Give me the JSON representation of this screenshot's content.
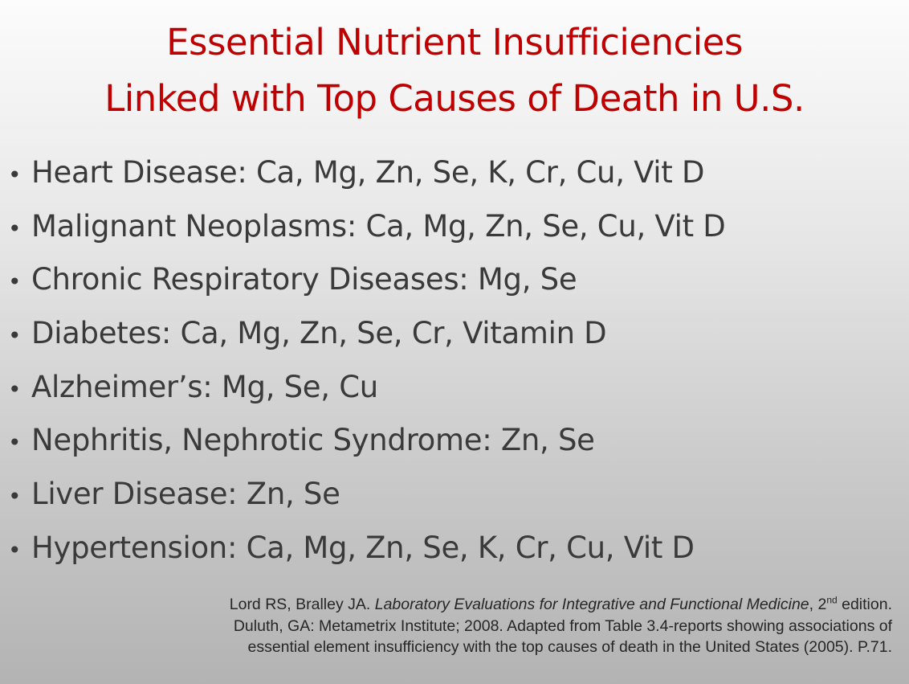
{
  "title": {
    "line1": "Essential Nutrient Insufficiencies",
    "line2": "Linked with Top Causes of Death in U.S."
  },
  "bullet_char": "•",
  "bullets": [
    "Heart Disease: Ca, Mg, Zn, Se, K, Cr, Cu, Vit D",
    "Malignant Neoplasms: Ca, Mg, Zn, Se, Cu, Vit D",
    "Chronic Respiratory Diseases: Mg, Se",
    "Diabetes: Ca, Mg, Zn, Se, Cr, Vitamin D",
    "Alzheimer’s: Mg, Se, Cu",
    "Nephritis, Nephrotic Syndrome: Zn, Se",
    "Liver Disease: Zn, Se",
    "Hypertension: Ca, Mg, Zn, Se, K, Cr, Cu, Vit D"
  ],
  "citation": {
    "authors": "Lord RS, Bralley JA. ",
    "book_title": "Laboratory Evaluations for Integrative and Functional Medicine",
    "edition_num": ", 2",
    "edition_sup": "nd",
    "edition_rest": " edition.",
    "line2": "Duluth, GA: Metametrix Institute; 2008. Adapted from Table 3.4-reports showing associations of",
    "line3": "essential element insufficiency with the top causes of death in the United States (2005). P.71."
  },
  "colors": {
    "title": "#c00000",
    "body_text": "#3a3a3a"
  }
}
